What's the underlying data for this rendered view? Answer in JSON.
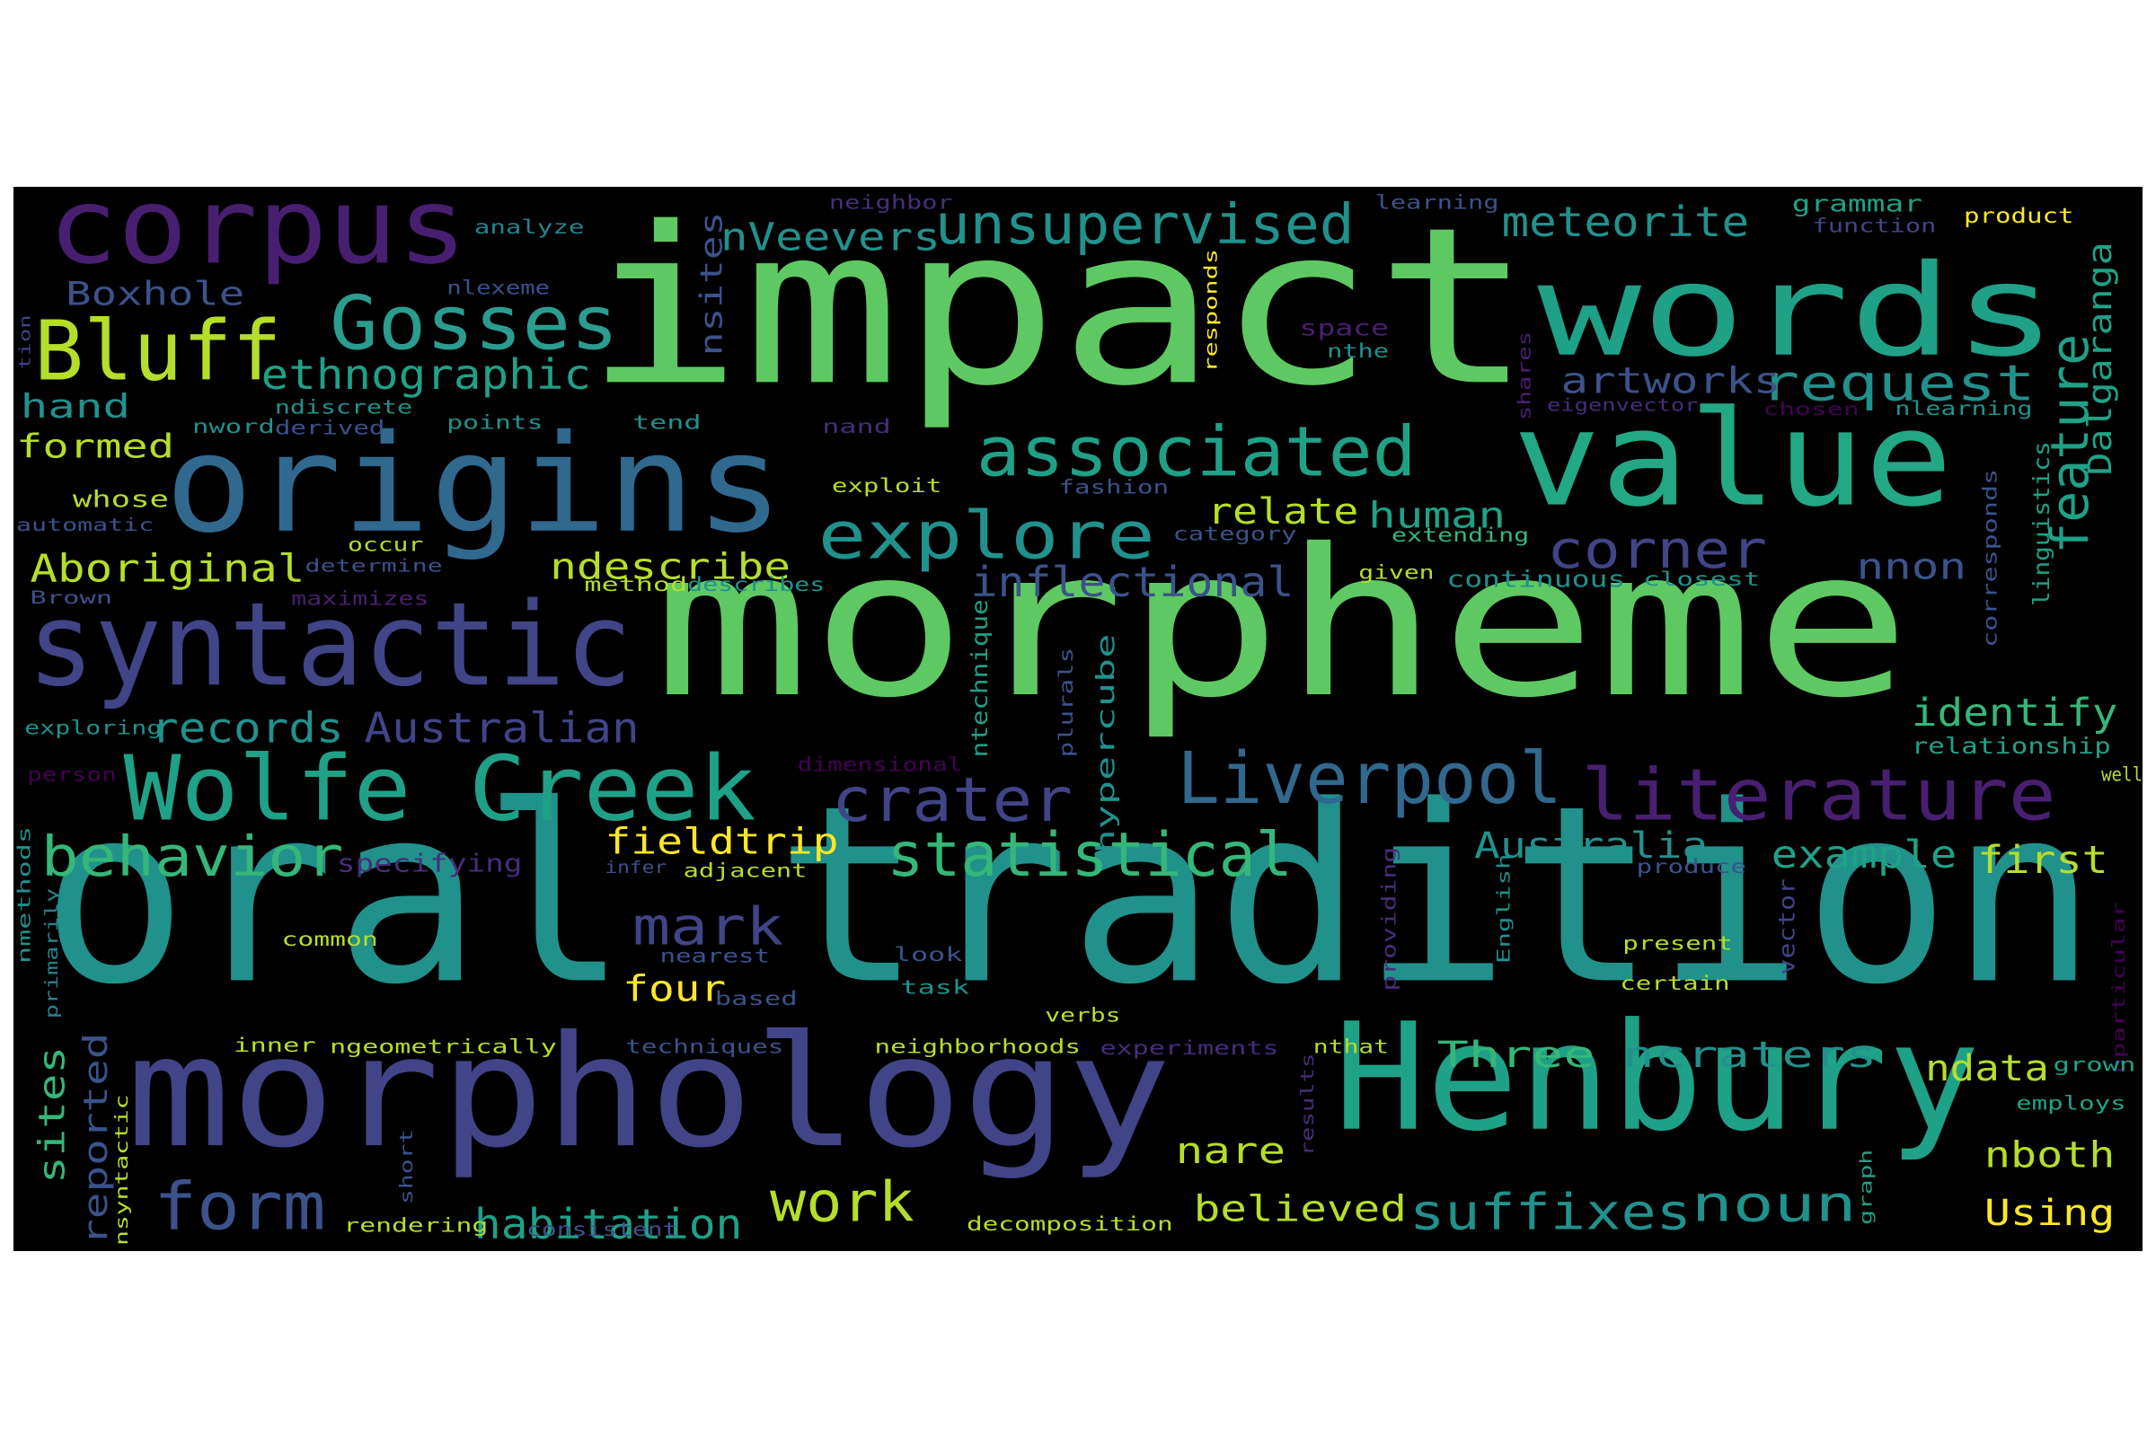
{
  "palette": {
    "background": "#000000",
    "lime": "#7ad151",
    "green": "#5ec962",
    "yellowgreen": "#b5de2b",
    "yellow": "#fde725",
    "teal": "#21918c",
    "teal2": "#1fa187",
    "aqua": "#22a884",
    "mint": "#2a9d8f",
    "steel": "#3b528b",
    "slate": "#414487",
    "blue": "#31688e",
    "cyan": "#26828e",
    "purple": "#481f70",
    "violet": "#440154",
    "indigo": "#472d7b",
    "seagreen": "#35b779"
  },
  "words": [
    {
      "text": "oral tradition",
      "color": "teal"
    },
    {
      "text": "morpheme",
      "color": "green"
    },
    {
      "text": "impact",
      "color": "green"
    },
    {
      "text": "morphology",
      "color": "slate"
    },
    {
      "text": "Henbury",
      "color": "teal2"
    },
    {
      "text": "words",
      "color": "teal2"
    },
    {
      "text": "value",
      "color": "aqua"
    },
    {
      "text": "origins",
      "color": "blue"
    },
    {
      "text": "syntactic",
      "color": "slate"
    },
    {
      "text": "corpus",
      "color": "purple"
    },
    {
      "text": "Wolfe Creek",
      "color": "teal2"
    },
    {
      "text": "literature",
      "color": "purple"
    },
    {
      "text": "Liverpool",
      "color": "blue"
    },
    {
      "text": "associated",
      "color": "teal2"
    },
    {
      "text": "explore",
      "color": "teal"
    },
    {
      "text": "crater",
      "color": "slate"
    },
    {
      "text": "statistical",
      "color": "seagreen"
    },
    {
      "text": "Bluff",
      "color": "yellowgreen"
    },
    {
      "text": "Gosses",
      "color": "mint"
    },
    {
      "text": "unsupervised",
      "color": "teal"
    },
    {
      "text": "feature",
      "color": "teal2"
    },
    {
      "text": "request",
      "color": "teal"
    },
    {
      "text": "corner",
      "color": "slate"
    },
    {
      "text": "behavior",
      "color": "seagreen"
    },
    {
      "text": "form",
      "color": "steel"
    },
    {
      "text": "suffixes",
      "color": "teal"
    },
    {
      "text": "noun",
      "color": "teal"
    },
    {
      "text": "mark",
      "color": "slate"
    },
    {
      "text": "work",
      "color": "yellowgreen"
    },
    {
      "text": "habitation",
      "color": "teal2"
    },
    {
      "text": "inflectional",
      "color": "steel"
    },
    {
      "text": "meteorite",
      "color": "teal"
    },
    {
      "text": "nVeevers",
      "color": "teal"
    },
    {
      "text": "ethnographic",
      "color": "teal2"
    },
    {
      "text": "Aboriginal",
      "color": "yellowgreen"
    },
    {
      "text": "Australian",
      "color": "slate"
    },
    {
      "text": "records",
      "color": "teal"
    },
    {
      "text": "artworks",
      "color": "steel"
    },
    {
      "text": "Dalgaranga",
      "color": "teal2"
    },
    {
      "text": "identify",
      "color": "seagreen"
    },
    {
      "text": "example",
      "color": "teal2"
    },
    {
      "text": "first",
      "color": "yellowgreen"
    },
    {
      "text": "Australia",
      "color": "teal"
    },
    {
      "text": "fieldtrip",
      "color": "yellow"
    },
    {
      "text": "relate",
      "color": "yellowgreen"
    },
    {
      "text": "human",
      "color": "teal2"
    },
    {
      "text": "ndescribe",
      "color": "yellowgreen"
    },
    {
      "text": "nnon",
      "color": "steel"
    },
    {
      "text": "Boxhole",
      "color": "steel"
    },
    {
      "text": "hand",
      "color": "teal"
    },
    {
      "text": "formed",
      "color": "yellowgreen"
    },
    {
      "text": "sites",
      "color": "seagreen"
    },
    {
      "text": "nsites",
      "color": "steel"
    },
    {
      "text": "reported",
      "color": "steel"
    },
    {
      "text": "four",
      "color": "yellow"
    },
    {
      "text": "Three",
      "color": "seagreen"
    },
    {
      "text": "ncraters",
      "color": "teal"
    },
    {
      "text": "ndata",
      "color": "yellowgreen"
    },
    {
      "text": "nare",
      "color": "yellowgreen"
    },
    {
      "text": "believed",
      "color": "yellowgreen"
    },
    {
      "text": "nboth",
      "color": "yellowgreen"
    },
    {
      "text": "Using",
      "color": "yellow"
    },
    {
      "text": "hypercube",
      "color": "teal"
    },
    {
      "text": "ntechnique",
      "color": "teal2"
    },
    {
      "text": "plurals",
      "color": "steel"
    },
    {
      "text": "grammar",
      "color": "teal2"
    },
    {
      "text": "product",
      "color": "yellow"
    },
    {
      "text": "function",
      "color": "slate"
    },
    {
      "text": "learning",
      "color": "steel"
    },
    {
      "text": "neighbor",
      "color": "indigo"
    },
    {
      "text": "analyze",
      "color": "cyan"
    },
    {
      "text": "nlexeme",
      "color": "steel"
    },
    {
      "text": "space",
      "color": "purple"
    },
    {
      "text": "nthe",
      "color": "teal"
    },
    {
      "text": "responds",
      "color": "yellow"
    },
    {
      "text": "shares",
      "color": "purple"
    },
    {
      "text": "eigenvector",
      "color": "indigo"
    },
    {
      "text": "chosen",
      "color": "violet"
    },
    {
      "text": "nlearning",
      "color": "teal"
    },
    {
      "text": "linguistics",
      "color": "teal2"
    },
    {
      "text": "corresponds",
      "color": "steel"
    },
    {
      "text": "points",
      "color": "teal"
    },
    {
      "text": "tend",
      "color": "teal"
    },
    {
      "text": "nand",
      "color": "indigo"
    },
    {
      "text": "nword",
      "color": "teal"
    },
    {
      "text": "derived",
      "color": "steel"
    },
    {
      "text": "ndiscrete",
      "color": "teal"
    },
    {
      "text": "whose",
      "color": "yellowgreen"
    },
    {
      "text": "automatic",
      "color": "steel"
    },
    {
      "text": "exploit",
      "color": "yellowgreen"
    },
    {
      "text": "fashion",
      "color": "steel"
    },
    {
      "text": "category",
      "color": "steel"
    },
    {
      "text": "occur",
      "color": "yellowgreen"
    },
    {
      "text": "determine",
      "color": "steel"
    },
    {
      "text": "extending",
      "color": "seagreen"
    },
    {
      "text": "Brown",
      "color": "steel"
    },
    {
      "text": "maximizes",
      "color": "purple"
    },
    {
      "text": "method",
      "color": "yellowgreen"
    },
    {
      "text": "describes",
      "color": "teal"
    },
    {
      "text": "given",
      "color": "yellowgreen"
    },
    {
      "text": "continuous",
      "color": "teal"
    },
    {
      "text": "closest",
      "color": "teal"
    },
    {
      "text": "exploring",
      "color": "teal"
    },
    {
      "text": "relationship",
      "color": "teal2"
    },
    {
      "text": "dimensional",
      "color": "violet"
    },
    {
      "text": "person",
      "color": "violet"
    },
    {
      "text": "well",
      "color": "yellowgreen"
    },
    {
      "text": "specifying",
      "color": "indigo"
    },
    {
      "text": "infer",
      "color": "steel"
    },
    {
      "text": "adjacent",
      "color": "yellowgreen"
    },
    {
      "text": "produce",
      "color": "steel"
    },
    {
      "text": "providing",
      "color": "indigo"
    },
    {
      "text": "English",
      "color": "teal"
    },
    {
      "text": "vector",
      "color": "slate"
    },
    {
      "text": "nparticular",
      "color": "violet"
    },
    {
      "text": "common",
      "color": "yellowgreen"
    },
    {
      "text": "nearest",
      "color": "steel"
    },
    {
      "text": "look",
      "color": "steel"
    },
    {
      "text": "present",
      "color": "yellowgreen"
    },
    {
      "text": "nmethods",
      "color": "teal"
    },
    {
      "text": "primarily",
      "color": "cyan"
    },
    {
      "text": "based",
      "color": "steel"
    },
    {
      "text": "task",
      "color": "teal"
    },
    {
      "text": "certain",
      "color": "yellowgreen"
    },
    {
      "text": "verbs",
      "color": "yellowgreen"
    },
    {
      "text": "inner",
      "color": "yellowgreen"
    },
    {
      "text": "ngeometrically",
      "color": "yellowgreen"
    },
    {
      "text": "techniques",
      "color": "steel"
    },
    {
      "text": "neighborhoods",
      "color": "yellowgreen"
    },
    {
      "text": "experiments",
      "color": "indigo"
    },
    {
      "text": "nthat",
      "color": "yellowgreen"
    },
    {
      "text": "grown",
      "color": "teal2"
    },
    {
      "text": "employs",
      "color": "teal2"
    },
    {
      "text": "results",
      "color": "indigo"
    },
    {
      "text": "nsyntactic",
      "color": "yellowgreen"
    },
    {
      "text": "short",
      "color": "steel"
    },
    {
      "text": "rendering",
      "color": "yellowgreen"
    },
    {
      "text": "consistent",
      "color": "steel"
    },
    {
      "text": "decomposition",
      "color": "yellowgreen"
    },
    {
      "text": "graph",
      "color": "teal2"
    },
    {
      "text": "tion",
      "color": "slate"
    }
  ]
}
